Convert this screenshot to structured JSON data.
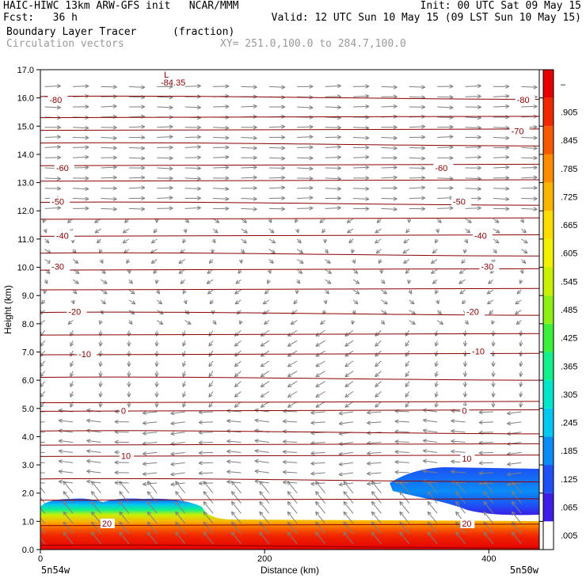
{
  "header": {
    "line1_left": "HAIC-HIWC 13km ARW-GFS init   NCAR/MMM",
    "line1_right": "Init: 00 UTC Sat 09 May 15",
    "line2_left": "Fcst:   36 h",
    "line2_right": "Valid: 12 UTC Sun 10 May 15 (09 LST Sun 10 May 15)",
    "line3_left": "Boundary Layer Tracer",
    "line3_units": "(fraction)",
    "line4_left": "Circulation vectors",
    "line4_xy": "XY= 251.0,100.0 to 284.7,100.0"
  },
  "chart_data": {
    "type": "heatmap",
    "title": "Boundary Layer Tracer",
    "units": "(fraction)",
    "xlabel": "Distance (km)",
    "ylabel": "Height (km)",
    "xlim": [
      0,
      445
    ],
    "ylim": [
      0,
      17
    ],
    "x_ticks": [
      0,
      200,
      400
    ],
    "y_ticks": [
      "0.0",
      "1.0",
      "2.0",
      "3.0",
      "4.0",
      "5.0",
      "6.0",
      "7.0",
      "8.0",
      "9.0",
      "10.0",
      "11.0",
      "12.0",
      "13.0",
      "14.0",
      "15.0",
      "16.0",
      "17.0"
    ],
    "x_end_labels": {
      "left": "5n54w",
      "right": "5n50w"
    },
    "grid": false,
    "colorbar": {
      "labels": [
        ".005",
        ".065",
        ".125",
        ".185",
        ".245",
        ".305",
        ".365",
        ".425",
        ".485",
        ".545",
        ".605",
        ".665",
        ".725",
        ".785",
        ".845",
        ".905",
        "–"
      ],
      "colors": [
        "#ffffff",
        "#3c1ee6",
        "#1e50f5",
        "#0a8cf5",
        "#00c8f0",
        "#00e6c8",
        "#14f08c",
        "#3cf03c",
        "#8cf014",
        "#c8f000",
        "#f0f000",
        "#fadc00",
        "#fab400",
        "#fa8c00",
        "#f55a00",
        "#f02800",
        "#e60000"
      ]
    },
    "temperature_contours": [
      {
        "label": "-80",
        "positions": [
          [
            8,
            15.9
          ],
          [
            425,
            15.9
          ]
        ]
      },
      {
        "label": "-70",
        "positions": [
          [
            420,
            14.8
          ]
        ]
      },
      {
        "label": "-60",
        "positions": [
          [
            14,
            13.5
          ],
          [
            352,
            13.5
          ]
        ]
      },
      {
        "label": "-50",
        "positions": [
          [
            10,
            12.3
          ],
          [
            368,
            12.3
          ]
        ]
      },
      {
        "label": "-40",
        "positions": [
          [
            14,
            11.1
          ],
          [
            387,
            11.1
          ]
        ]
      },
      {
        "label": "-30",
        "positions": [
          [
            10,
            10.0
          ],
          [
            393,
            10.0
          ]
        ]
      },
      {
        "label": "-20",
        "positions": [
          [
            25,
            8.4
          ],
          [
            380,
            8.4
          ]
        ]
      },
      {
        "label": "-10",
        "positions": [
          [
            34,
            6.9
          ],
          [
            385,
            7.0
          ]
        ]
      },
      {
        "label": "0",
        "positions": [
          [
            72,
            4.9
          ],
          [
            376,
            4.9
          ]
        ]
      },
      {
        "label": "10",
        "positions": [
          [
            72,
            3.3
          ],
          [
            376,
            3.2
          ]
        ]
      },
      {
        "label": "20",
        "positions": [
          [
            55,
            0.9
          ],
          [
            376,
            0.9
          ]
        ]
      }
    ],
    "min_label": {
      "text": "-84.35",
      "marker": "L",
      "x": 125,
      "y": 16.6
    },
    "tracer_regions": [
      {
        "name": "boundary layer",
        "x_range": [
          0,
          445
        ],
        "top_km": [
          1.8,
          1.0
        ]
      },
      {
        "name": "elevated plume",
        "x_range": [
          300,
          445
        ],
        "top_km": [
          2.95,
          2.8
        ],
        "bottom_km": [
          2.2,
          1.2
        ]
      }
    ]
  }
}
